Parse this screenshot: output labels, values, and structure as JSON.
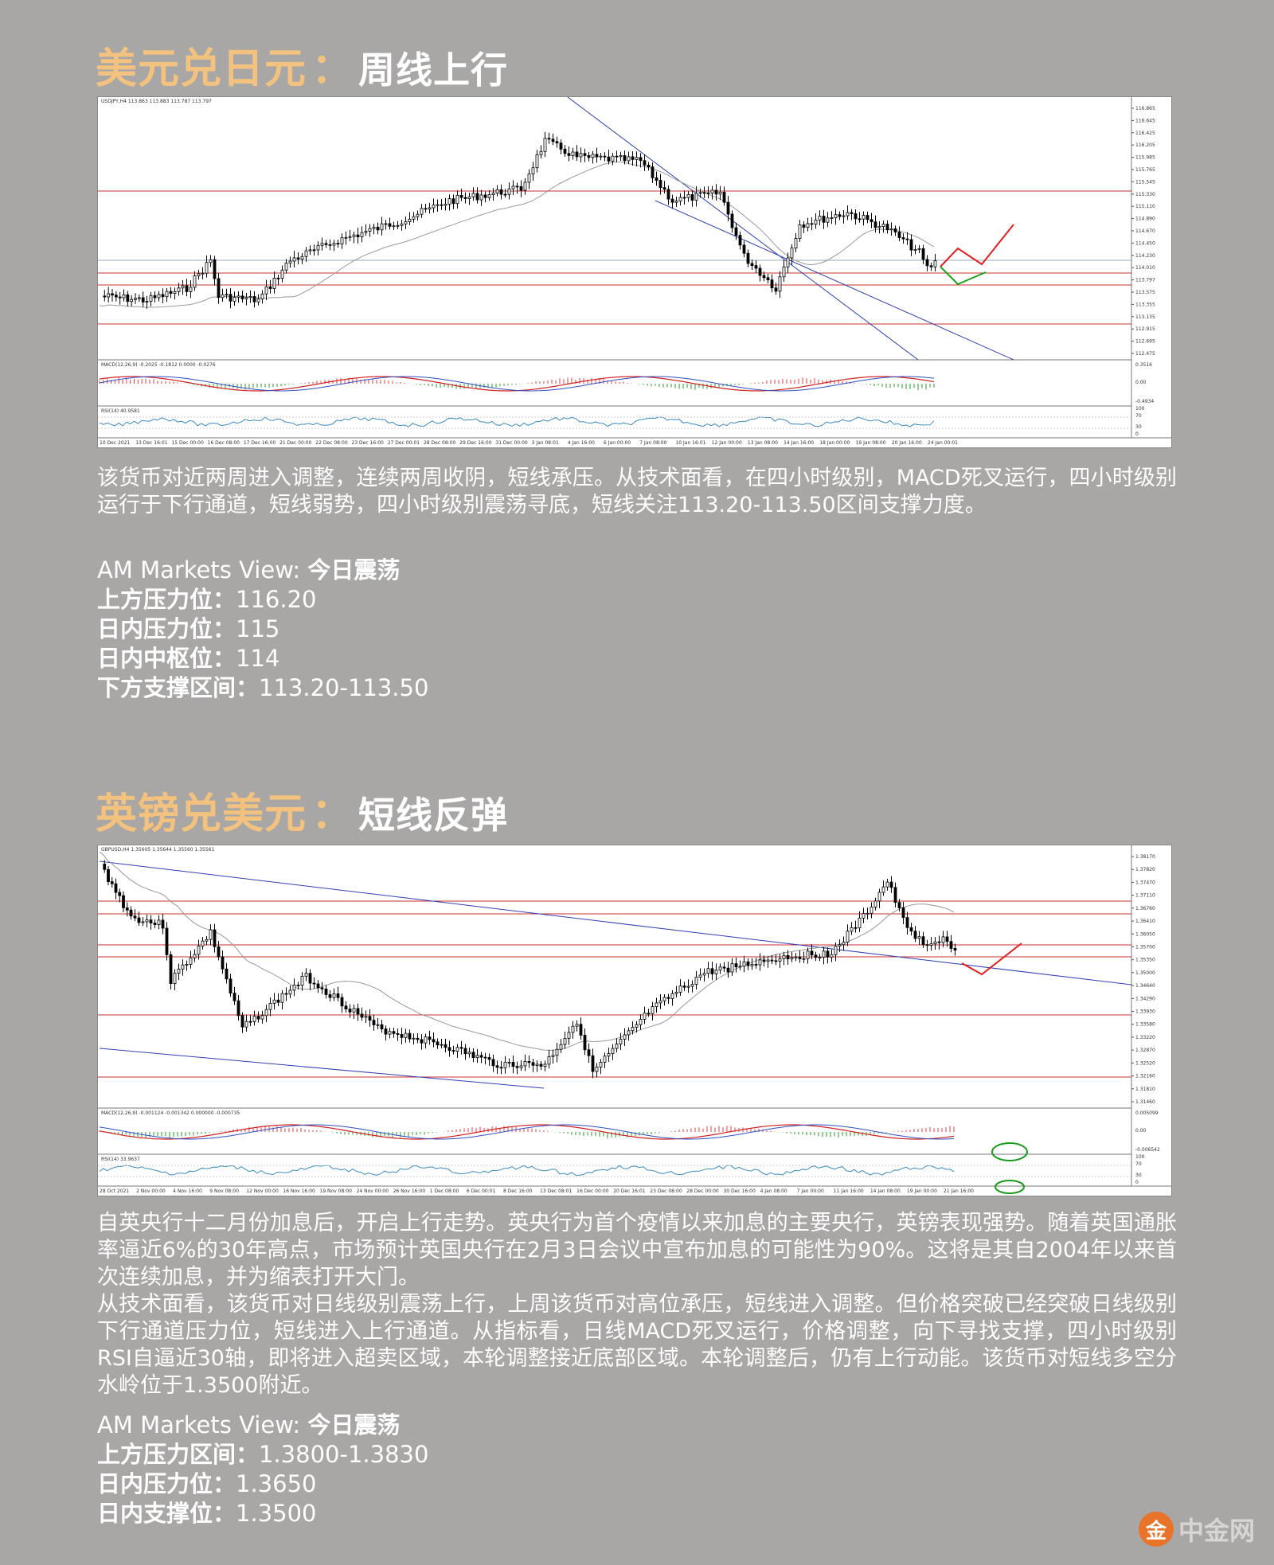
{
  "sections": [
    {
      "pair": "美元兑日元",
      "colon": "：",
      "trend": "周线上行",
      "chart_header": "USDJPY,H4 113.863 113.883 113.787 113.797",
      "chart_times": [
        "10 Dec 2021",
        "13 Dec 16:01",
        "15 Dec 00:00",
        "16 Dec 08:00",
        "17 Dec 16:00",
        "21 Dec 00:00",
        "22 Dec 08:00",
        "23 Dec 16:00",
        "27 Dec 00:01",
        "28 Dec 08:00",
        "29 Dec 16:00",
        "31 Dec 00:00",
        "3 Jan 08:01",
        "4 Jan 16:00",
        "6 Jan 00:00",
        "7 Jan 08:00",
        "10 Jan 16:01",
        "12 Jan 00:00",
        "13 Jan 08:00",
        "14 Jan 16:00",
        "18 Jan 00:00",
        "19 Jan 08:00",
        "20 Jan 16:00",
        "24 Jan 00:01"
      ],
      "chart_prices": [
        "116.865",
        "116.645",
        "116.425",
        "116.205",
        "115.985",
        "115.765",
        "115.545",
        "115.330",
        "115.110",
        "114.890",
        "114.670",
        "114.450",
        "114.230",
        "114.010",
        "113.797",
        "113.575",
        "113.355",
        "113.135",
        "112.915",
        "112.695",
        "112.475"
      ],
      "macd_label": "MACD(12,26,9) -0.2025 -0.1812 0.0000 -0.0276",
      "macd_scale": [
        "0.3516",
        "0.00",
        "-0.4934"
      ],
      "rsi_label": "RSI(14) 40.9581",
      "rsi_scale": [
        "100",
        "70",
        "30",
        "0"
      ],
      "body": "该货币对近两周进入调整，连续两周收阴，短线承压。从技术面看，在四小时级别，MACD死叉运行，四小时级别运行于下行通道，短线弱势，四小时级别震荡寻底，短线关注113.20-113.50区间支撑力度。",
      "view_brand": "AM Markets View: ",
      "view_stance": "今日震荡",
      "levels": [
        {
          "label": "上方压力位：",
          "value": "116.20"
        },
        {
          "label": "日内压力位：",
          "value": "115"
        },
        {
          "label": "日内中枢位：",
          "value": "114"
        },
        {
          "label": "下方支撑区间：",
          "value": "113.20-113.50"
        }
      ]
    },
    {
      "pair": "英镑兑美元",
      "colon": "：",
      "trend": "短线反弹",
      "chart_header": "GBPUSD,H4 1.35605 1.35644 1.35560 1.35561",
      "chart_times": [
        "28 Oct 2021",
        "2 Nov 00:00",
        "4 Nov 16:00",
        "9 Nov 08:00",
        "12 Nov 00:00",
        "16 Nov 16:00",
        "19 Nov 08:00",
        "24 Nov 00:00",
        "26 Nov 16:00",
        "1 Dec 08:00",
        "6 Dec 00:01",
        "8 Dec 16:00",
        "13 Dec 08:01",
        "16 Dec 00:00",
        "20 Dec 16:01",
        "23 Dec 08:00",
        "28 Dec 00:00",
        "30 Dec 16:00",
        "4 Jan 08:00",
        "7 Jan 00:00",
        "11 Jan 16:00",
        "14 Jan 08:00",
        "19 Jan 00:00",
        "21 Jan 16:00"
      ],
      "chart_prices": [
        "1.38170",
        "1.37820",
        "1.37470",
        "1.37110",
        "1.36760",
        "1.36410",
        "1.36050",
        "1.35700",
        "1.35350",
        "1.35000",
        "1.34640",
        "1.34290",
        "1.33930",
        "1.33580",
        "1.33220",
        "1.32870",
        "1.32520",
        "1.32160",
        "1.31810",
        "1.31460"
      ],
      "macd_label": "MACD(12,26,9) -0.001124 -0.001342 0.000000 -0.000735",
      "macd_scale": [
        "0.005099",
        "0.00",
        "-0.006542"
      ],
      "rsi_label": "RSI(14) 33.9637",
      "rsi_scale": [
        "100",
        "70",
        "30",
        "0"
      ],
      "body_paragraphs": [
        "自英央行十二月份加息后，开启上行走势。英央行为首个疫情以来加息的主要央行，英镑表现强势。随着英国通胀率逼近6%的30年高点，市场预计英国央行在2月3日会议中宣布加息的可能性为90%。这将是其自2004年以来首次连续加息，并为缩表打开大门。",
        "从技术面看，该货币对日线级别震荡上行，上周该货币对高位承压，短线进入调整。但价格突破已经突破日线级别下行通道压力位，短线进入上行通道。从指标看，日线MACD死叉运行，价格调整，向下寻找支撑，四小时级别RSI自逼近30轴，即将进入超卖区域，本轮调整接近底部区域。本轮调整后，仍有上行动能。该货币对短线多空分水岭位于1.3500附近。"
      ],
      "view_brand": "AM Markets View: ",
      "view_stance": "今日震荡",
      "levels": [
        {
          "label": "上方压力区间：",
          "value": "1.3800-1.3830"
        },
        {
          "label": "日内压力位：",
          "value": "1.3650"
        },
        {
          "label": "日内支撑位：",
          "value": "1.3500"
        }
      ]
    }
  ],
  "watermark": {
    "icon": "金",
    "text": "中金网"
  },
  "colors": {
    "title_gold": "#f2c27e",
    "background": "#a9a7a6",
    "arrow_red": "#e02020",
    "arrow_green": "#1aa01a"
  }
}
